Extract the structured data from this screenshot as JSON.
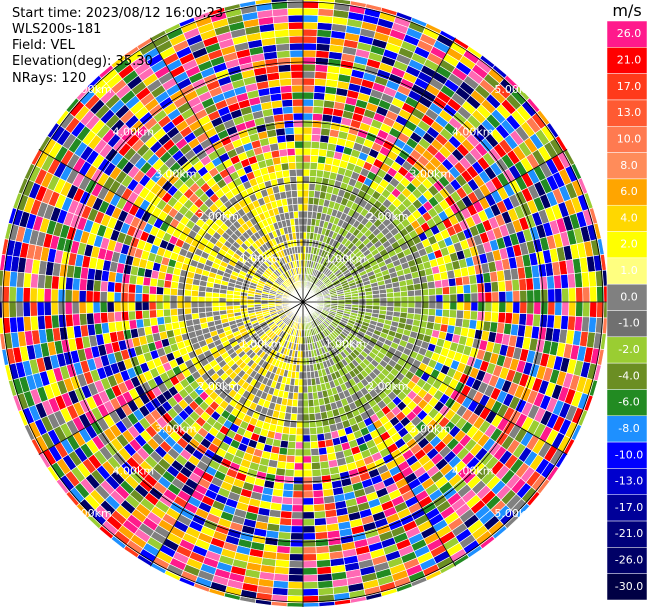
{
  "info": {
    "start_time": "Start time: 2023/08/12 16:00:23",
    "site": "WLS200s-181",
    "field": "Field: VEL",
    "elevation": "Elevation(deg): 35.30",
    "nrays": "NRays: 120"
  },
  "chart_data": {
    "type": "ppi-radar",
    "field": "VEL",
    "unit": "m/s",
    "nrays": 120,
    "elevation_deg": 35.3,
    "range_rings_km": [
      1.0,
      2.0,
      3.0,
      4.0,
      5.0
    ],
    "ring_labels": [
      "1.00km",
      "2.00km",
      "3.00km",
      "4.00km",
      "5.00km"
    ],
    "colorbar": {
      "ticks": [
        "26.0",
        "21.0",
        "17.0",
        "13.0",
        "10.0",
        "8.0",
        "6.0",
        "4.0",
        "2.0",
        "1.0",
        "0.0",
        "-1.0",
        "-2.0",
        "-4.0",
        "-6.0",
        "-8.0",
        "-10.0",
        "-13.0",
        "-17.0",
        "-21.0",
        "-26.0",
        "-30.0"
      ],
      "colors": [
        "#ff1a8c",
        "#ff0000",
        "#ff3a1a",
        "#ff5a32",
        "#ff7a50",
        "#ff8c5a",
        "#ffa500",
        "#ffd700",
        "#ffff00",
        "#ffff80",
        "#808080",
        "#707070",
        "#9acd32",
        "#6b8e23",
        "#228b22",
        "#1e90ff",
        "#0000ff",
        "#0000cd",
        "#000099",
        "#00007a",
        "#000066",
        "#000044"
      ]
    }
  }
}
